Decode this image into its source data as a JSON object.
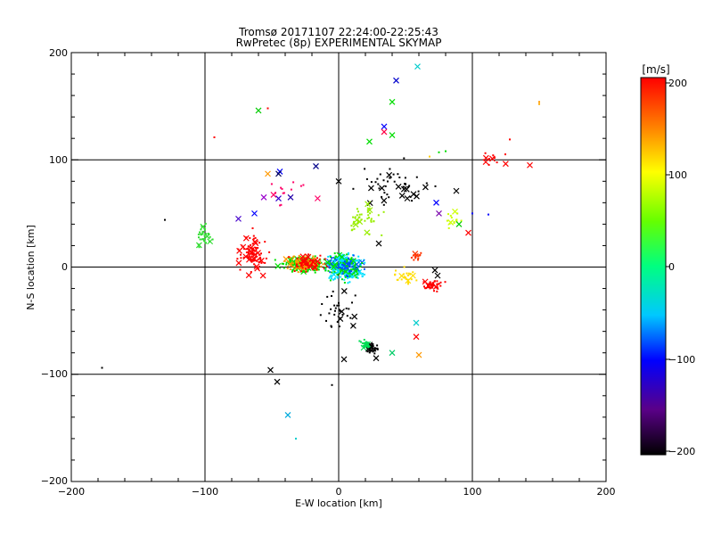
{
  "chart_data": {
    "type": "scatter",
    "title": "Tromsø 20171107 22:24:00-22:25:43",
    "subtitle": "RwPretec (8p) EXPERIMENTAL SKYMAP",
    "xlabel": "E-W location [km]",
    "ylabel": "N-S location [km]",
    "xlim": [
      -200,
      200
    ],
    "ylim": [
      -200,
      200
    ],
    "xticks": [
      "−200",
      "−100",
      "0",
      "100",
      "200"
    ],
    "yticks": [
      "200",
      "100",
      "0",
      "−100",
      "−200"
    ],
    "grid": true,
    "colorbar": {
      "label": "[m/s]",
      "range": [
        -200,
        200
      ],
      "ticks": [
        "200",
        "100",
        "0",
        "−100",
        "−200"
      ]
    },
    "point_groups": [
      {
        "x": -25,
        "y": 3,
        "sx": 12,
        "sy": 6,
        "n": 170,
        "color": "#00e000"
      },
      {
        "x": -25,
        "y": 3,
        "sx": 12,
        "sy": 6,
        "n": 90,
        "color": "#ff9900"
      },
      {
        "x": -25,
        "y": 3,
        "sx": 12,
        "sy": 6,
        "n": 60,
        "color": "#ff0000"
      },
      {
        "x": 5,
        "y": 0,
        "sx": 12,
        "sy": 10,
        "n": 170,
        "color": "#00e0ff"
      },
      {
        "x": 5,
        "y": 0,
        "sx": 10,
        "sy": 8,
        "n": 70,
        "color": "#0050ff"
      },
      {
        "x": 5,
        "y": 0,
        "sx": 12,
        "sy": 10,
        "n": 60,
        "color": "#00e000"
      },
      {
        "x": -65,
        "y": 12,
        "sx": 8,
        "sy": 14,
        "n": 90,
        "color": "#ff0000"
      },
      {
        "x": -100,
        "y": 30,
        "sx": 4,
        "sy": 8,
        "n": 35,
        "color": "#33dd33"
      },
      {
        "x": 25,
        "y": -75,
        "sx": 4,
        "sy": 4,
        "n": 40,
        "color": "#000000"
      },
      {
        "x": 20,
        "y": -72,
        "sx": 3,
        "sy": 3,
        "n": 25,
        "color": "#00dd55"
      },
      {
        "x": 70,
        "y": -18,
        "sx": 6,
        "sy": 5,
        "n": 45,
        "color": "#ff0000"
      },
      {
        "x": 40,
        "y": 75,
        "sx": 25,
        "sy": 15,
        "n": 50,
        "color": "#000000"
      },
      {
        "x": 20,
        "y": 45,
        "sx": 10,
        "sy": 12,
        "n": 40,
        "color": "#99ee00"
      },
      {
        "x": 0,
        "y": -40,
        "sx": 12,
        "sy": 15,
        "n": 35,
        "color": "#000000"
      },
      {
        "x": 50,
        "y": -10,
        "sx": 8,
        "sy": 6,
        "n": 25,
        "color": "#ffdd00"
      },
      {
        "x": 60,
        "y": 10,
        "sx": 4,
        "sy": 3,
        "n": 15,
        "color": "#ff3300"
      },
      {
        "x": 85,
        "y": 45,
        "sx": 6,
        "sy": 8,
        "n": 15,
        "color": "#ccff00"
      },
      {
        "x": 115,
        "y": 100,
        "sx": 15,
        "sy": 5,
        "n": 12,
        "color": "#ff0000"
      },
      {
        "x": -40,
        "y": 70,
        "sx": 15,
        "sy": 10,
        "n": 15,
        "color": "#ff0066"
      }
    ],
    "markers": [
      {
        "x": 59,
        "y": 187,
        "color": "#00cccc"
      },
      {
        "x": 43,
        "y": 174,
        "color": "#0000cc"
      },
      {
        "x": 40,
        "y": 154,
        "color": "#00dd00"
      },
      {
        "x": -60,
        "y": 146,
        "color": "#00cc00"
      },
      {
        "x": 34,
        "y": 131,
        "color": "#0000ff"
      },
      {
        "x": 34,
        "y": 126,
        "color": "#ff0044"
      },
      {
        "x": 40,
        "y": 123,
        "color": "#00dd00"
      },
      {
        "x": 23,
        "y": 117,
        "color": "#00dd00"
      },
      {
        "x": 143,
        "y": 95,
        "color": "#ff0000"
      },
      {
        "x": -17,
        "y": 94,
        "color": "#000088"
      },
      {
        "x": -44,
        "y": 89,
        "color": "#0000ff"
      },
      {
        "x": -45,
        "y": 87,
        "color": "#000055"
      },
      {
        "x": -53,
        "y": 87,
        "color": "#ff9900"
      },
      {
        "x": 0,
        "y": 80,
        "color": "#000000"
      },
      {
        "x": 56,
        "y": 68,
        "color": "#000000"
      },
      {
        "x": 88,
        "y": 71,
        "color": "#000000"
      },
      {
        "x": -56,
        "y": 65,
        "color": "#9900cc"
      },
      {
        "x": -45,
        "y": 64,
        "color": "#3300cc"
      },
      {
        "x": -36,
        "y": 65,
        "color": "#2200aa"
      },
      {
        "x": 73,
        "y": 60,
        "color": "#0000ff"
      },
      {
        "x": 75,
        "y": 50,
        "color": "#7700aa"
      },
      {
        "x": -63,
        "y": 50,
        "color": "#0000ff"
      },
      {
        "x": -75,
        "y": 45,
        "color": "#4400cc"
      },
      {
        "x": 90,
        "y": 40,
        "color": "#00cc00"
      },
      {
        "x": 97,
        "y": 32,
        "color": "#ff0000"
      },
      {
        "x": 30,
        "y": 22,
        "color": "#000000"
      },
      {
        "x": 72,
        "y": -3,
        "color": "#000000"
      },
      {
        "x": 74,
        "y": -8,
        "color": "#000000"
      },
      {
        "x": 58,
        "y": -52,
        "color": "#00cccc"
      },
      {
        "x": 58,
        "y": -65,
        "color": "#ff0000"
      },
      {
        "x": 40,
        "y": -80,
        "color": "#00cc66"
      },
      {
        "x": 60,
        "y": -82,
        "color": "#ff9900"
      },
      {
        "x": 4,
        "y": -86,
        "color": "#000000"
      },
      {
        "x": -51,
        "y": -96,
        "color": "#000000"
      },
      {
        "x": -46,
        "y": -107,
        "color": "#000000"
      },
      {
        "x": -38,
        "y": -138,
        "color": "#00aadd"
      },
      {
        "x": 28,
        "y": -85,
        "color": "#000000"
      }
    ],
    "dots": [
      {
        "x": -177,
        "y": -94,
        "color": "#000000"
      },
      {
        "x": -130,
        "y": 44,
        "color": "#000000"
      },
      {
        "x": -93,
        "y": 121,
        "color": "#ff0000"
      },
      {
        "x": -53,
        "y": 148,
        "color": "#ff0000"
      },
      {
        "x": -32,
        "y": -160,
        "color": "#00cccc"
      },
      {
        "x": -5,
        "y": -110,
        "color": "#000000"
      },
      {
        "x": 150,
        "y": 152,
        "color": "#ffaa00"
      },
      {
        "x": 150,
        "y": 154,
        "color": "#ff9900"
      },
      {
        "x": 128,
        "y": 119,
        "color": "#ff0000"
      },
      {
        "x": 75,
        "y": 107,
        "color": "#00dd00"
      },
      {
        "x": 80,
        "y": 108,
        "color": "#00dd00"
      },
      {
        "x": 68,
        "y": 103,
        "color": "#ffcc00"
      },
      {
        "x": 100,
        "y": 50,
        "color": "#0000ff"
      },
      {
        "x": 112,
        "y": 49,
        "color": "#0000ff"
      }
    ]
  }
}
